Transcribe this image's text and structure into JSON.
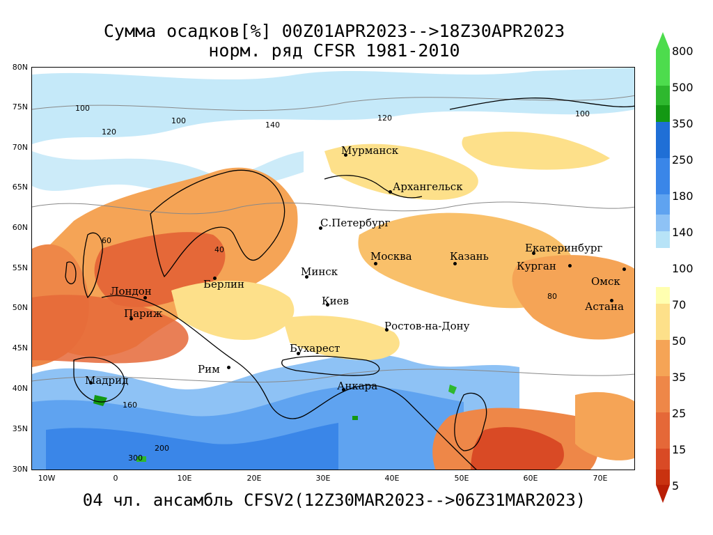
{
  "title": {
    "line1": "Сумма осадков[%] 00Z01APR2023-->18Z30APR2023",
    "line2": "норм. ряд CFSR 1981-2010"
  },
  "footer": "04 чл. ансамбль CFSV2(12Z30MAR2023-->06Z31MAR2023)",
  "axes": {
    "lat_labels": [
      "80N",
      "75N",
      "70N",
      "65N",
      "60N",
      "55N",
      "50N",
      "45N",
      "40N",
      "35N",
      "30N"
    ],
    "lon_labels": [
      "10W",
      "0",
      "10E",
      "20E",
      "30E",
      "40E",
      "50E",
      "60E",
      "70E"
    ]
  },
  "legend": {
    "levels": [
      "800",
      "500",
      "350",
      "250",
      "180",
      "140",
      "100",
      "70",
      "50",
      "35",
      "25",
      "15",
      "5"
    ],
    "colors_wet": [
      "#4ddc4d",
      "#2eb82e",
      "#139813",
      "#1f6fd6",
      "#3a86e8",
      "#5fa3f0",
      "#8ec2f5",
      "#b7e3f7"
    ],
    "colors_dry": [
      "#ffffb0",
      "#fde08a",
      "#f9c06a",
      "#f5a456",
      "#ee8748",
      "#e56838",
      "#d94a25",
      "#c93210",
      "#b91e05"
    ]
  },
  "cities": [
    {
      "name": "Мурманск"
    },
    {
      "name": "Архангельск"
    },
    {
      "name": "С.Петербург"
    },
    {
      "name": "Москва"
    },
    {
      "name": "Казань"
    },
    {
      "name": "Екатеринбург"
    },
    {
      "name": "Курган"
    },
    {
      "name": "Омск"
    },
    {
      "name": "Астана"
    },
    {
      "name": "Минск"
    },
    {
      "name": "Киев"
    },
    {
      "name": "Ростов-на-Дону"
    },
    {
      "name": "Бухарест"
    },
    {
      "name": "Анкара"
    },
    {
      "name": "Рим"
    },
    {
      "name": "Мадрид"
    },
    {
      "name": "Париж"
    },
    {
      "name": "Лондон"
    },
    {
      "name": "Берлин"
    }
  ],
  "contour_labels": [
    "100",
    "120",
    "100",
    "140",
    "120",
    "100",
    "80",
    "60",
    "40",
    "160",
    "200",
    "300"
  ]
}
